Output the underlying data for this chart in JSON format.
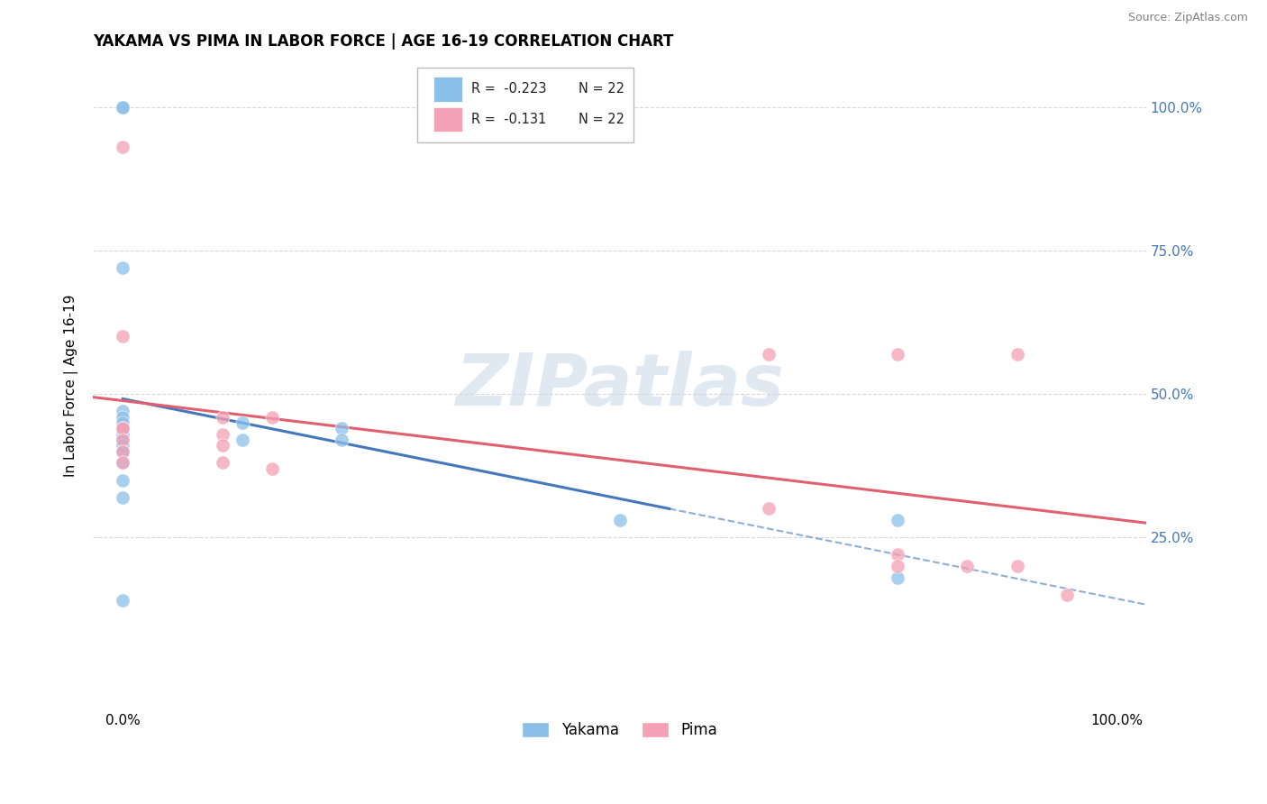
{
  "title": "YAKAMA VS PIMA IN LABOR FORCE | AGE 16-19 CORRELATION CHART",
  "source": "Source: ZipAtlas.com",
  "ylabel": "In Labor Force | Age 16-19",
  "watermark_text": "ZIPatlas",
  "legend_r_yakama": "R =  -0.223",
  "legend_r_pima": "R =  -0.131",
  "legend_n": "N = 22",
  "yakama_color": "#8bbfe8",
  "pima_color": "#f4a0b5",
  "yakama_line_color": "#4477bb",
  "pima_line_color": "#e06070",
  "background_color": "#ffffff",
  "grid_color": "#d8d8d8",
  "yakama_x": [
    0.0,
    0.0,
    0.0,
    0.0,
    0.0,
    0.0,
    0.0,
    0.0,
    0.0,
    0.0,
    0.0,
    0.0,
    0.0,
    0.0,
    0.0,
    0.12,
    0.12,
    0.22,
    0.22,
    0.5,
    0.78,
    0.78
  ],
  "yakama_y": [
    1.0,
    1.0,
    0.72,
    0.47,
    0.46,
    0.45,
    0.44,
    0.43,
    0.42,
    0.41,
    0.4,
    0.38,
    0.35,
    0.32,
    0.14,
    0.45,
    0.42,
    0.44,
    0.42,
    0.28,
    0.28,
    0.18
  ],
  "pima_x": [
    0.0,
    0.0,
    0.0,
    0.0,
    0.0,
    0.0,
    0.0,
    0.1,
    0.1,
    0.1,
    0.1,
    0.15,
    0.15,
    0.65,
    0.65,
    0.78,
    0.78,
    0.78,
    0.85,
    0.9,
    0.9,
    0.95
  ],
  "pima_y": [
    0.93,
    0.6,
    0.44,
    0.44,
    0.42,
    0.4,
    0.38,
    0.46,
    0.43,
    0.41,
    0.38,
    0.46,
    0.37,
    0.57,
    0.3,
    0.57,
    0.22,
    0.2,
    0.2,
    0.57,
    0.2,
    0.15
  ],
  "xlim": [
    -0.03,
    1.03
  ],
  "ylim": [
    -0.05,
    1.08
  ],
  "yticks": [
    0.25,
    0.5,
    0.75,
    1.0
  ],
  "ytick_labels": [
    "25.0%",
    "50.0%",
    "75.0%",
    "100.0%"
  ],
  "xticks": [
    0.0,
    1.0
  ],
  "xtick_labels": [
    "0.0%",
    "100.0%"
  ],
  "title_fontsize": 12,
  "axis_fontsize": 11,
  "source_fontsize": 9
}
